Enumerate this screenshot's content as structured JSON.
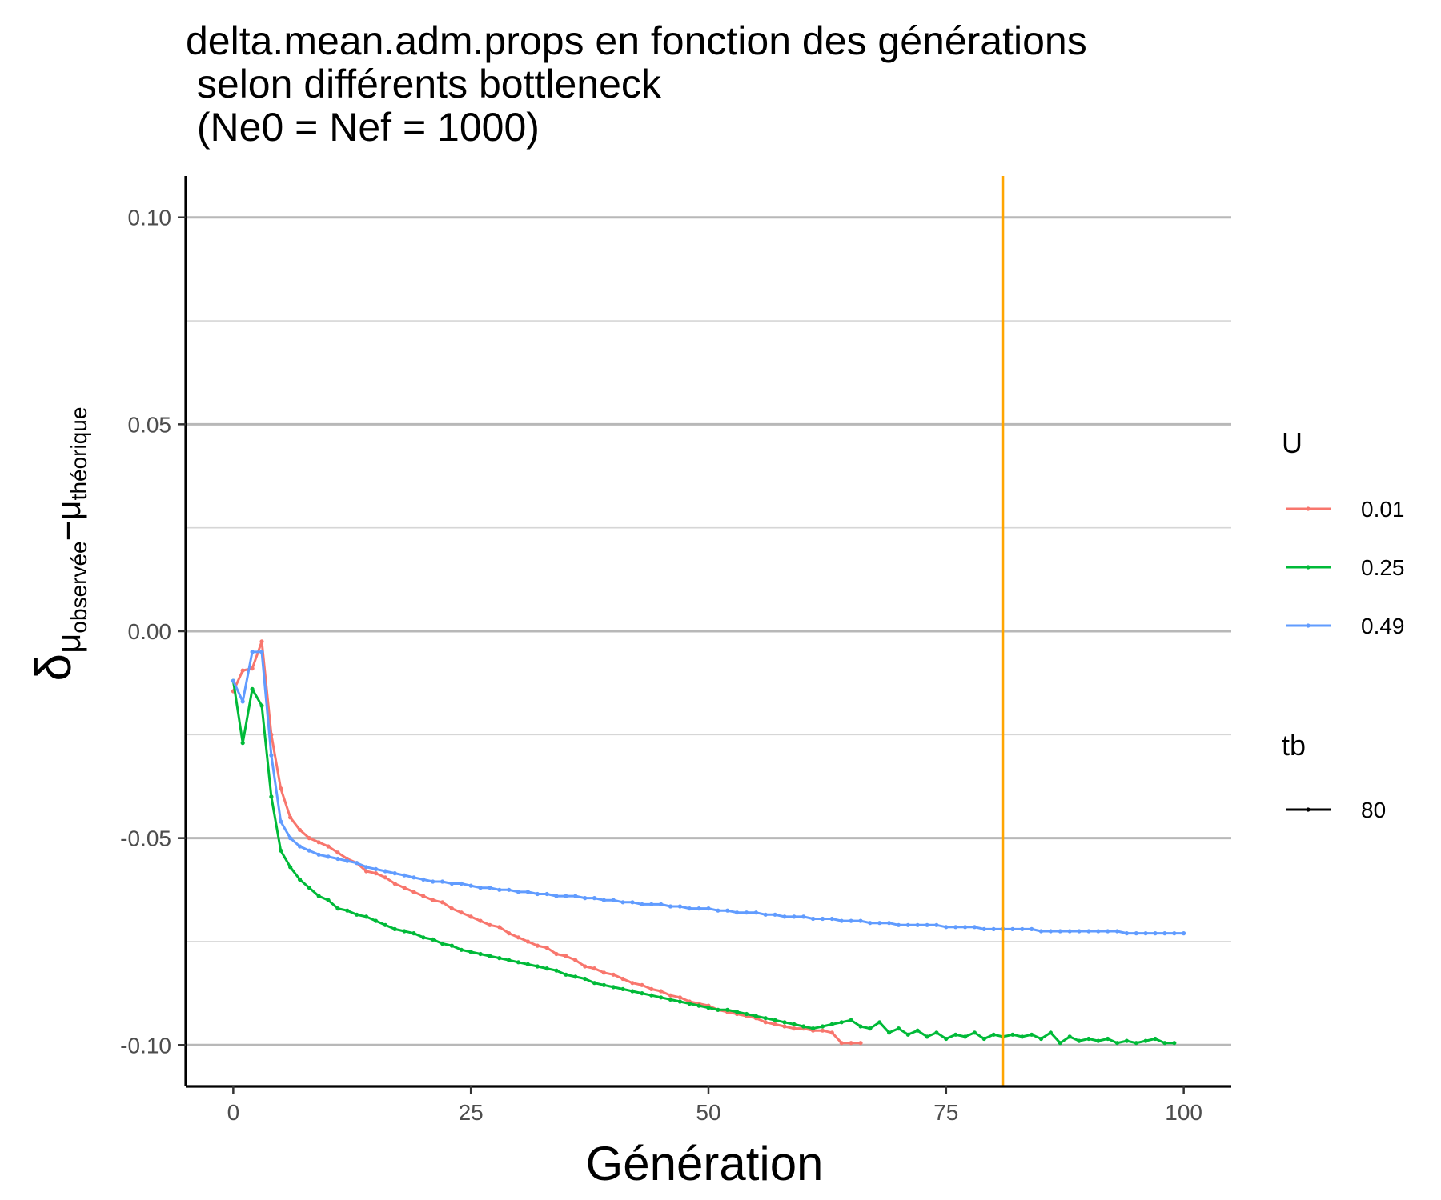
{
  "chart_data": {
    "type": "line",
    "title": [
      "delta.mean.adm.props en fonction des générations",
      " selon différents bottleneck",
      " (Ne0 = Nef = 1000)"
    ],
    "xlabel": "Génération",
    "ylabel": {
      "delta": "δ",
      "sub_left": "μ",
      "sub_left_sub": "observée",
      "minus": "−",
      "sub_right": "μ",
      "sub_right_sub": "théorique"
    },
    "xlim": [
      -5,
      105
    ],
    "ylim": [
      -0.11,
      0.11
    ],
    "xticks": [
      0,
      25,
      50,
      75,
      100
    ],
    "xtick_labels": [
      "0",
      "25",
      "50",
      "75",
      "100"
    ],
    "yticks": [
      0.1,
      0.05,
      0.0,
      -0.05,
      -0.1
    ],
    "ytick_labels": [
      "0.10",
      "0.05",
      "0.00",
      "-0.05",
      "-0.10"
    ],
    "yminor": [
      0.075,
      0.025,
      -0.025,
      -0.075
    ],
    "grid": "horizontal",
    "vline": {
      "x": 81,
      "color": "#FFA500"
    },
    "legend": {
      "placement": "right",
      "color_title": "U",
      "linetype_title": "tb",
      "linetype_entries": [
        "80"
      ]
    },
    "series": [
      {
        "name": "0.01",
        "color": "#F8766D",
        "x_start": 0,
        "values": [
          -0.0145,
          -0.0095,
          -0.009,
          -0.0025,
          -0.025,
          -0.038,
          -0.045,
          -0.048,
          -0.05,
          -0.051,
          -0.052,
          -0.0535,
          -0.055,
          -0.056,
          -0.058,
          -0.0585,
          -0.0595,
          -0.061,
          -0.062,
          -0.063,
          -0.064,
          -0.065,
          -0.0655,
          -0.067,
          -0.068,
          -0.069,
          -0.07,
          -0.071,
          -0.0715,
          -0.073,
          -0.074,
          -0.075,
          -0.076,
          -0.0765,
          -0.078,
          -0.0785,
          -0.0795,
          -0.081,
          -0.0815,
          -0.0825,
          -0.083,
          -0.084,
          -0.085,
          -0.0855,
          -0.0865,
          -0.087,
          -0.088,
          -0.0885,
          -0.0895,
          -0.09,
          -0.0905,
          -0.0915,
          -0.092,
          -0.0925,
          -0.093,
          -0.0935,
          -0.0945,
          -0.095,
          -0.0955,
          -0.096,
          -0.096,
          -0.0965,
          -0.0965,
          -0.097,
          -0.0995,
          -0.0995,
          -0.0995
        ]
      },
      {
        "name": "0.25",
        "color": "#00BA38",
        "x_start": 0,
        "values": [
          -0.012,
          -0.027,
          -0.014,
          -0.018,
          -0.04,
          -0.053,
          -0.057,
          -0.06,
          -0.062,
          -0.064,
          -0.065,
          -0.067,
          -0.0675,
          -0.0685,
          -0.069,
          -0.07,
          -0.071,
          -0.072,
          -0.0725,
          -0.073,
          -0.074,
          -0.0745,
          -0.0755,
          -0.076,
          -0.077,
          -0.0775,
          -0.078,
          -0.0785,
          -0.079,
          -0.0795,
          -0.08,
          -0.0805,
          -0.081,
          -0.0815,
          -0.082,
          -0.083,
          -0.0835,
          -0.084,
          -0.085,
          -0.0855,
          -0.086,
          -0.0865,
          -0.087,
          -0.0875,
          -0.088,
          -0.0885,
          -0.089,
          -0.0895,
          -0.09,
          -0.0905,
          -0.091,
          -0.0915,
          -0.0915,
          -0.092,
          -0.0925,
          -0.093,
          -0.0935,
          -0.094,
          -0.0945,
          -0.095,
          -0.0955,
          -0.096,
          -0.0955,
          -0.095,
          -0.0945,
          -0.094,
          -0.0955,
          -0.096,
          -0.0945,
          -0.097,
          -0.096,
          -0.0975,
          -0.0965,
          -0.098,
          -0.097,
          -0.0985,
          -0.0975,
          -0.098,
          -0.097,
          -0.0985,
          -0.0975,
          -0.098,
          -0.0975,
          -0.098,
          -0.0975,
          -0.0985,
          -0.097,
          -0.0995,
          -0.098,
          -0.099,
          -0.0985,
          -0.099,
          -0.0985,
          -0.0995,
          -0.099,
          -0.0995,
          -0.099,
          -0.0985,
          -0.0995,
          -0.0995
        ]
      },
      {
        "name": "0.49",
        "color": "#619CFF",
        "x_start": 0,
        "values": [
          -0.012,
          -0.017,
          -0.005,
          -0.005,
          -0.03,
          -0.046,
          -0.05,
          -0.052,
          -0.053,
          -0.054,
          -0.0545,
          -0.055,
          -0.0555,
          -0.056,
          -0.057,
          -0.0575,
          -0.058,
          -0.0585,
          -0.059,
          -0.0595,
          -0.06,
          -0.0605,
          -0.0605,
          -0.061,
          -0.061,
          -0.0615,
          -0.062,
          -0.062,
          -0.0625,
          -0.0625,
          -0.063,
          -0.063,
          -0.0635,
          -0.0635,
          -0.064,
          -0.064,
          -0.064,
          -0.0645,
          -0.0645,
          -0.065,
          -0.065,
          -0.0655,
          -0.0655,
          -0.066,
          -0.066,
          -0.066,
          -0.0665,
          -0.0665,
          -0.067,
          -0.067,
          -0.067,
          -0.0675,
          -0.0675,
          -0.068,
          -0.068,
          -0.068,
          -0.0685,
          -0.0685,
          -0.069,
          -0.069,
          -0.069,
          -0.0695,
          -0.0695,
          -0.0695,
          -0.07,
          -0.07,
          -0.07,
          -0.0705,
          -0.0705,
          -0.0705,
          -0.071,
          -0.071,
          -0.071,
          -0.071,
          -0.071,
          -0.0715,
          -0.0715,
          -0.0715,
          -0.0715,
          -0.072,
          -0.072,
          -0.072,
          -0.072,
          -0.072,
          -0.072,
          -0.0725,
          -0.0725,
          -0.0725,
          -0.0725,
          -0.0725,
          -0.0725,
          -0.0725,
          -0.0725,
          -0.0725,
          -0.073,
          -0.073,
          -0.073,
          -0.073,
          -0.073,
          -0.073,
          -0.073
        ]
      }
    ]
  }
}
